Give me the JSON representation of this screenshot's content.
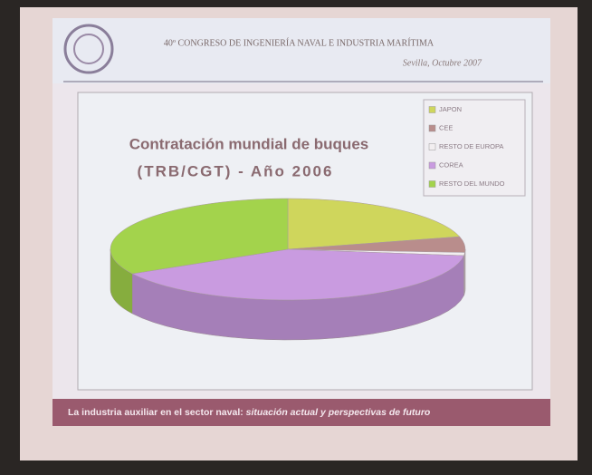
{
  "header": {
    "congress": "40º CONGRESO DE INGENIERÍA NAVAL E INDUSTRIA MARÍTIMA",
    "place_date": "Sevilla, Octubre 2007"
  },
  "chart_data": {
    "type": "pie",
    "title": [
      "Contratación mundial de buques",
      "(TRB/CGT) - Año 2006"
    ],
    "categories": [
      "JAPON",
      "CEE",
      "RESTO DE EUROPA",
      "COREA",
      "RESTO DEL MUNDO"
    ],
    "values": [
      21,
      5,
      1,
      40,
      33
    ],
    "colors": [
      "#cfd65c",
      "#b98d8c",
      "#f2eef0",
      "#c99be0",
      "#a3d34c"
    ]
  },
  "footer": {
    "lead": "La industria auxiliar en el sector naval:",
    "rest": "situación actual y perspectivas de futuro"
  }
}
